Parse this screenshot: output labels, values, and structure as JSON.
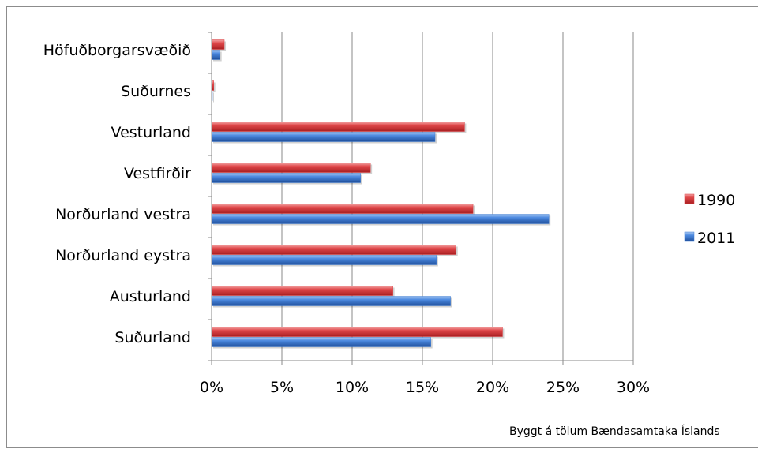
{
  "chart_data": {
    "type": "bar",
    "orientation": "horizontal",
    "categories": [
      "Höfuðborgarsvæðið",
      "Suðurnes",
      "Vesturland",
      "Vestfirðir",
      "Norðurland vestra",
      "Norðurland eystra",
      "Austurland",
      "Suðurland"
    ],
    "series": [
      {
        "name": "1990",
        "color": "#d9383a",
        "values": [
          0.9,
          0.15,
          18.0,
          11.3,
          18.6,
          17.4,
          12.9,
          20.7
        ]
      },
      {
        "name": "2011",
        "color": "#3d7bd1",
        "values": [
          0.6,
          0.05,
          15.9,
          10.6,
          24.0,
          16.0,
          17.0,
          15.6
        ]
      }
    ],
    "xlim": [
      0,
      30
    ],
    "xticks": [
      "0%",
      "5%",
      "10%",
      "15%",
      "20%",
      "25%",
      "30%"
    ],
    "grid": "vertical",
    "legend": "right",
    "source_note": "Byggt á tölum Bændasamtaka Íslands"
  }
}
